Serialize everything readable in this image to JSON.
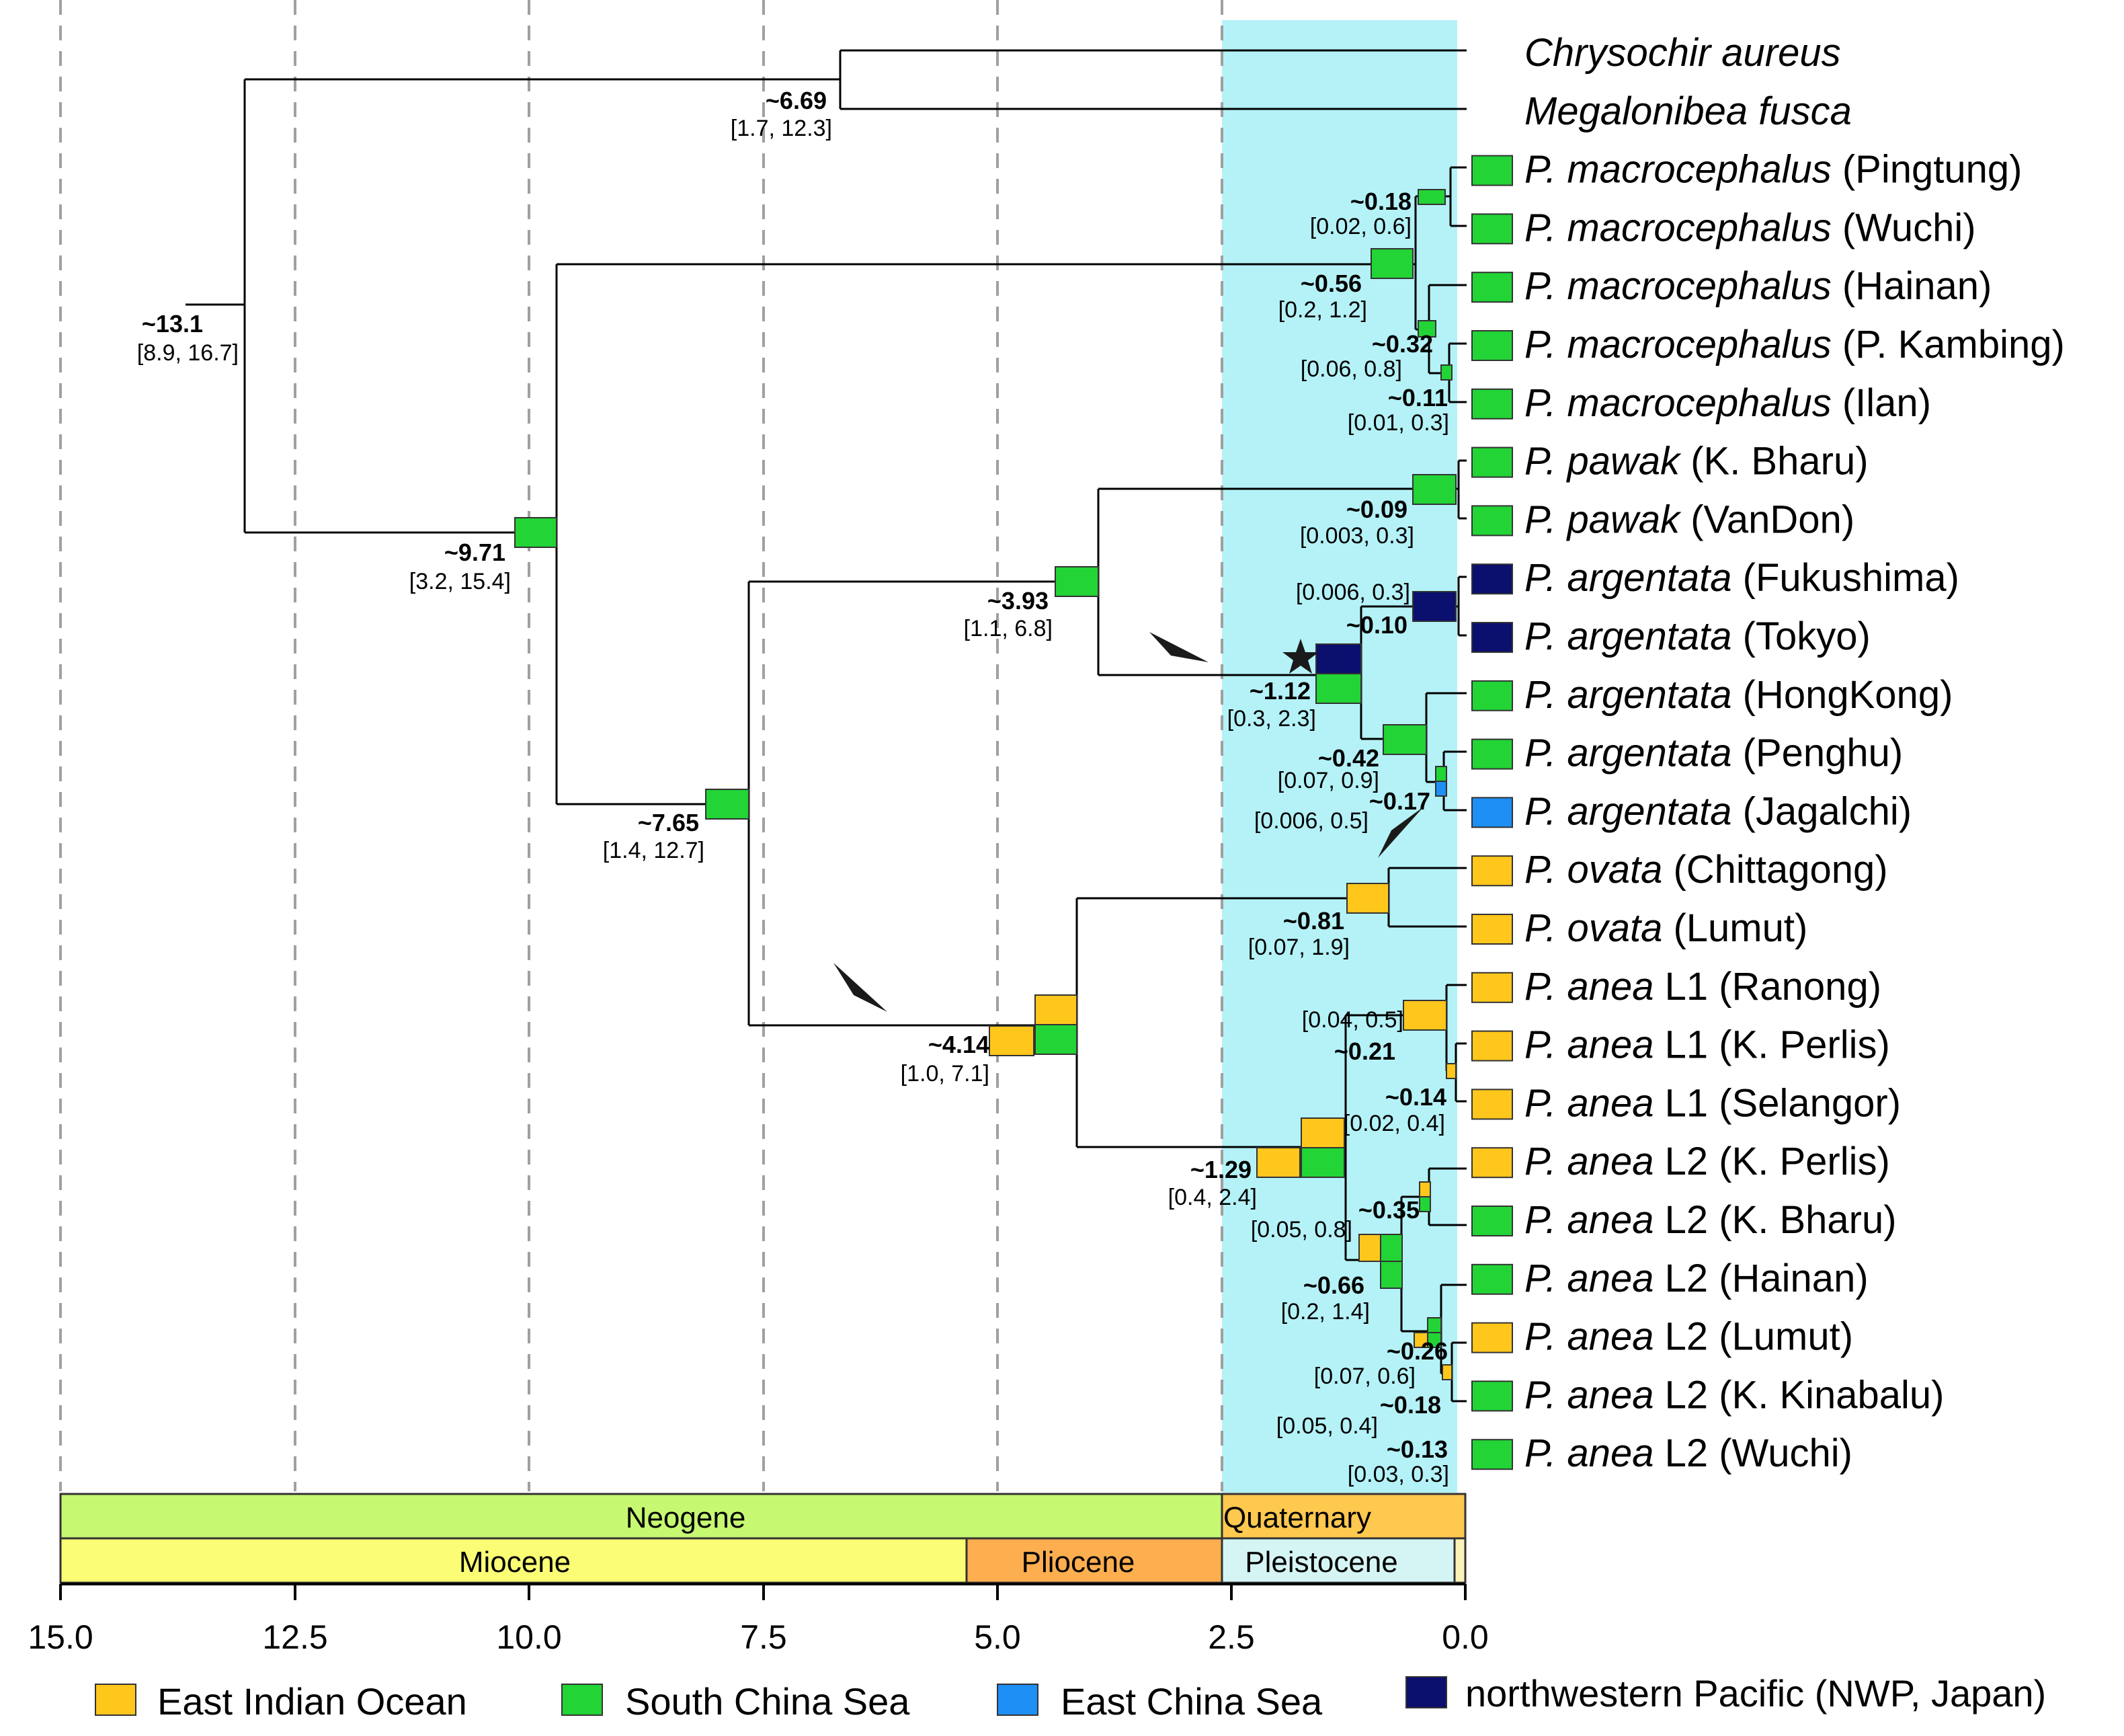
{
  "colors": {
    "east_indian_ocean": "#ffc71c",
    "south_china_sea": "#22d436",
    "east_china_sea": "#1e8ff5",
    "nwp": "#0b0f6e",
    "quaternary_shade": "#b4f2f7",
    "neogene": "#c6f871",
    "quaternary": "#ffc84f",
    "miocene": "#fbfe75",
    "pliocene": "#fdae4f",
    "pleistocene": "#d5f5f5"
  },
  "taxa": [
    {
      "genus": "Chrysochir",
      "species": "aureus",
      "loc": ""
    },
    {
      "genus": "Megalonibea",
      "species": "fusca",
      "loc": ""
    },
    {
      "genus": "P.",
      "species": "macrocephalus",
      "loc": "(Pingtung)"
    },
    {
      "genus": "P.",
      "species": "macrocephalus",
      "loc": "(Wuchi)"
    },
    {
      "genus": "P.",
      "species": "macrocephalus",
      "loc": "(Hainan)"
    },
    {
      "genus": "P.",
      "species": "macrocephalus",
      "loc": "(P. Kambing)"
    },
    {
      "genus": "P.",
      "species": "macrocephalus",
      "loc": "(Ilan)"
    },
    {
      "genus": "P.",
      "species": "pawak",
      "loc": "(K. Bharu)"
    },
    {
      "genus": "P.",
      "species": "pawak",
      "loc": "(VanDon)"
    },
    {
      "genus": "P.",
      "species": "argentata",
      "loc": "(Fukushima)"
    },
    {
      "genus": "P.",
      "species": "argentata",
      "loc": "(Tokyo)"
    },
    {
      "genus": "P.",
      "species": "argentata",
      "loc": "(HongKong)"
    },
    {
      "genus": "P.",
      "species": "argentata",
      "loc": "(Penghu)"
    },
    {
      "genus": "P.",
      "species": "argentata",
      "loc": "(Jagalchi)"
    },
    {
      "genus": "P.",
      "species": "ovata",
      "loc": "(Chittagong)"
    },
    {
      "genus": "P.",
      "species": "ovata",
      "loc": "(Lumut)"
    },
    {
      "genus": "P.",
      "species": "anea",
      "loc": "L1 (Ranong)"
    },
    {
      "genus": "P.",
      "species": "anea",
      "loc": "L1 (K. Perlis)"
    },
    {
      "genus": "P.",
      "species": "anea",
      "loc": "L1 (Selangor)"
    },
    {
      "genus": "P.",
      "species": "anea",
      "loc": "L2 (K. Perlis)"
    },
    {
      "genus": "P.",
      "species": "anea",
      "loc": "L2 (K. Bharu)"
    },
    {
      "genus": "P.",
      "species": "anea",
      "loc": "L2 (Hainan)"
    },
    {
      "genus": "P.",
      "species": "anea",
      "loc": "L2 (Lumut)"
    },
    {
      "genus": "P.",
      "species": "anea",
      "loc": "L2 (K. Kinabalu)"
    },
    {
      "genus": "P.",
      "species": "anea",
      "loc": "L2 (Wuchi)"
    }
  ],
  "tip_regions": [
    "",
    "",
    "scs",
    "scs",
    "scs",
    "scs",
    "scs",
    "scs",
    "scs",
    "nwp",
    "nwp",
    "scs",
    "scs",
    "ecs",
    "eio",
    "eio",
    "eio",
    "eio",
    "eio",
    "eio",
    "scs",
    "scs",
    "eio",
    "scs",
    "scs"
  ],
  "nodes": [
    {
      "age": "~13.1",
      "hpd": "[8.9, 16.7]"
    },
    {
      "age": "~6.69",
      "hpd": "[1.7, 12.3]"
    },
    {
      "age": "~9.71",
      "hpd": "[3.2, 15.4]"
    },
    {
      "age": "~0.56",
      "hpd": "[0.2, 1.2]"
    },
    {
      "age": "~0.18",
      "hpd": "[0.02, 0.6]"
    },
    {
      "age": "~0.32",
      "hpd": "[0.06, 0.8]"
    },
    {
      "age": "~0.11",
      "hpd": "[0.01, 0.3]"
    },
    {
      "age": "~7.65",
      "hpd": "[1.4, 12.7]"
    },
    {
      "age": "~3.93",
      "hpd": "[1.1, 6.8]"
    },
    {
      "age": "~0.09",
      "hpd": "[0.003, 0.3]"
    },
    {
      "age": "~1.12",
      "hpd": "[0.3, 2.3]"
    },
    {
      "age": "~0.10",
      "hpd": "[0.006, 0.3]"
    },
    {
      "age": "~0.42",
      "hpd": "[0.07, 0.9]"
    },
    {
      "age": "~0.17",
      "hpd": "[0.006, 0.5]"
    },
    {
      "age": "~4.14",
      "hpd": "[1.0, 7.1]"
    },
    {
      "age": "~0.81",
      "hpd": "[0.07, 1.9]"
    },
    {
      "age": "~1.29",
      "hpd": "[0.4, 2.4]"
    },
    {
      "age": "~0.21",
      "hpd": "[0.04, 0.5]"
    },
    {
      "age": "~0.14",
      "hpd": "[0.02, 0.4]"
    },
    {
      "age": "~0.66",
      "hpd": "[0.2, 1.4]"
    },
    {
      "age": "~0.35",
      "hpd": "[0.05, 0.8]"
    },
    {
      "age": "~0.26",
      "hpd": "[0.07, 0.6]"
    },
    {
      "age": "~0.18",
      "hpd": "[0.05, 0.4]"
    },
    {
      "age": "~0.13",
      "hpd": "[0.03, 0.3]"
    }
  ],
  "axis": {
    "ticks": [
      "15.0",
      "12.5",
      "10.0",
      "7.5",
      "5.0",
      "2.5",
      "0.0"
    ]
  },
  "timescale": {
    "periods": [
      "Neogene",
      "Quaternary"
    ],
    "epochs": [
      "Miocene",
      "Pliocene",
      "Pleistocene"
    ]
  },
  "legend": [
    {
      "key": "east_indian_ocean",
      "label": "East Indian Ocean"
    },
    {
      "key": "south_china_sea",
      "label": "South China Sea"
    },
    {
      "key": "east_china_sea",
      "label": "East China Sea"
    },
    {
      "key": "nwp",
      "label": "northwestern Pacific (NWP, Japan)"
    }
  ]
}
